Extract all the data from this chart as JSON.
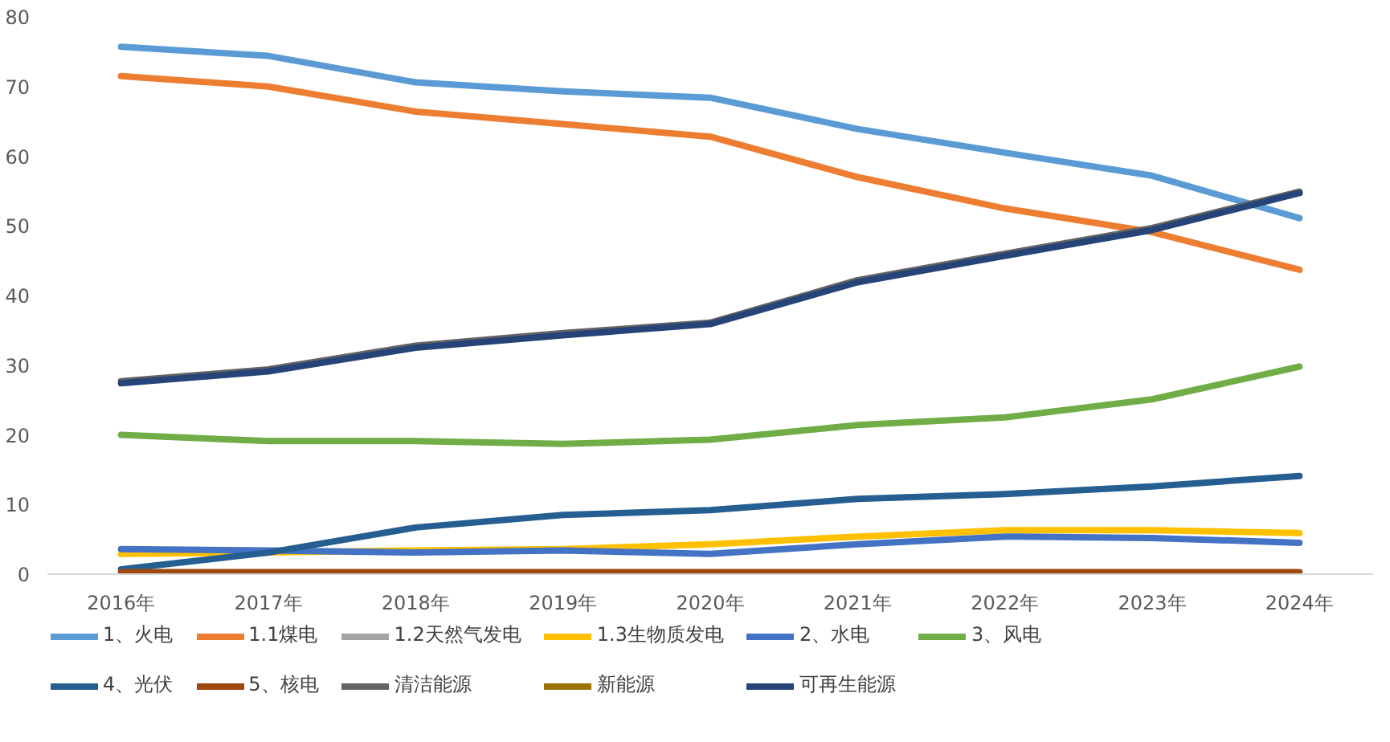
{
  "chart_data": {
    "type": "line",
    "categories": [
      "2016年",
      "2017年",
      "2018年",
      "2019年",
      "2020年",
      "2021年",
      "2022年",
      "2023年",
      "2024年"
    ],
    "ylim": [
      0,
      80
    ],
    "yticks": [
      0,
      10,
      20,
      30,
      40,
      50,
      60,
      70,
      80
    ],
    "grid": false,
    "legend": "bottom",
    "marker": "none",
    "line_style": "solid",
    "series": [
      {
        "name": "1、火电",
        "color": "#5b9bd5",
        "values": [
          75.7,
          74.4,
          70.6,
          69.3,
          68.4,
          63.9,
          60.5,
          57.2,
          51.1
        ]
      },
      {
        "name": "1.1煤电",
        "color": "#ed7d31",
        "values": [
          71.5,
          70.0,
          66.4,
          64.6,
          62.8,
          57.0,
          52.5,
          49.1,
          43.7
        ]
      },
      {
        "name": "1.2天然气发电",
        "color": "#a5a5a5",
        "values": [
          null,
          null,
          null,
          null,
          null,
          null,
          null,
          null,
          null
        ]
      },
      {
        "name": "1.3生物质发电",
        "color": "#ffc000",
        "values": [
          2.9,
          3.1,
          3.4,
          3.6,
          4.3,
          5.4,
          6.3,
          6.3,
          5.9
        ]
      },
      {
        "name": "2、水电",
        "color": "#4472c4",
        "values": [
          3.6,
          3.4,
          3.1,
          3.4,
          2.9,
          4.3,
          5.4,
          5.2,
          4.5
        ]
      },
      {
        "name": "3、风电",
        "color": "#70ad47",
        "values": [
          20.0,
          19.1,
          19.1,
          18.7,
          19.3,
          21.4,
          22.5,
          25.1,
          29.8
        ]
      },
      {
        "name": "4、光伏",
        "color": "#255e91",
        "values": [
          0.7,
          3.1,
          6.7,
          8.5,
          9.2,
          10.8,
          11.5,
          12.6,
          14.1
        ]
      },
      {
        "name": "5、核电",
        "color": "#9e480e",
        "values": [
          0.3,
          0.3,
          0.3,
          0.3,
          0.3,
          0.3,
          0.3,
          0.3,
          0.3
        ]
      },
      {
        "name": "清洁能源",
        "color": "#636363",
        "values": [
          27.7,
          29.4,
          32.8,
          34.6,
          36.1,
          42.2,
          46.0,
          49.7,
          54.9
        ]
      },
      {
        "name": "新能源",
        "color": "#997300",
        "values": [
          null,
          null,
          null,
          null,
          null,
          null,
          null,
          null,
          null
        ]
      },
      {
        "name": "可再生能源",
        "color": "#264478",
        "values": [
          27.4,
          29.1,
          32.5,
          34.3,
          35.9,
          41.9,
          45.7,
          49.4,
          54.7
        ]
      }
    ]
  }
}
